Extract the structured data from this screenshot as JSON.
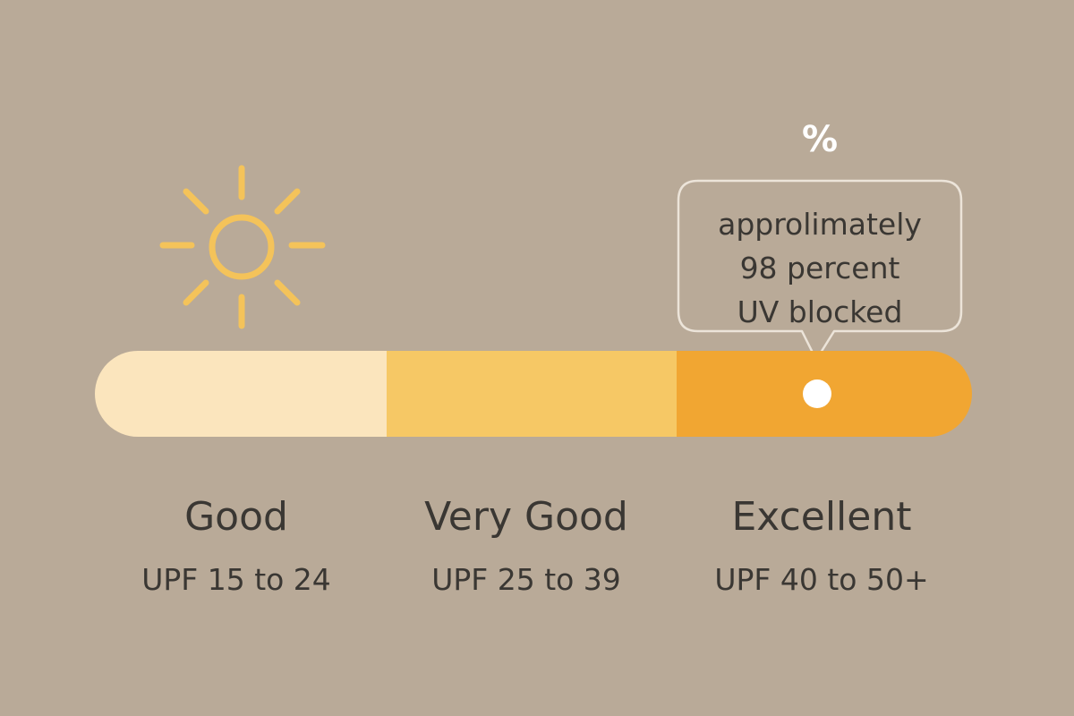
{
  "colors": {
    "background": "#b9aa98",
    "sun": "#f4c35a",
    "text": "#3a3733",
    "callout_border": "#ece4d9",
    "marker": "#ffffff"
  },
  "sun_icon": "sun-icon",
  "percent_symbol": "%",
  "callout": {
    "lines": [
      "approlimately",
      "98 percent",
      "UV blocked"
    ]
  },
  "scale": {
    "marker_tier": "Excellent",
    "tiers": [
      {
        "name": "Good",
        "range": "UPF 15 to 24",
        "color": "#fbe5bd"
      },
      {
        "name": "Very Good",
        "range": "UPF 25 to 39",
        "color": "#f6c865"
      },
      {
        "name": "Excellent",
        "range": "UPF 40 to 50+",
        "color": "#f1a632"
      }
    ]
  }
}
